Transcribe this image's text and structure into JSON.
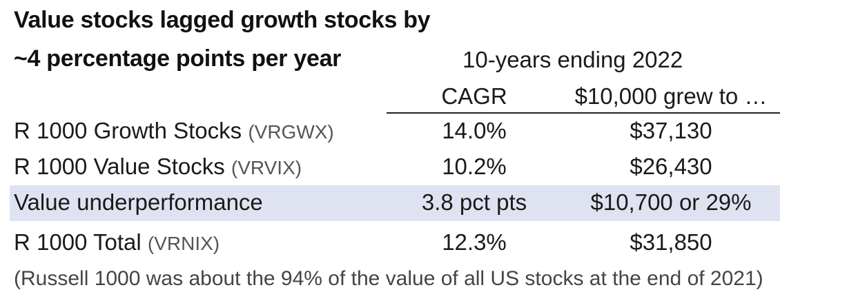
{
  "chart_data": {
    "type": "table",
    "title_lines": [
      "Value stocks lagged growth stocks by",
      "~4 percentage points per year"
    ],
    "subtitle": "10-years ending 2022",
    "columns": [
      "CAGR",
      "$10,000 grew to …"
    ],
    "rows": [
      {
        "label": "R 1000 Growth Stocks",
        "fund": "(VRGWX)",
        "cagr": "14.0%",
        "grew_to": "$37,130",
        "highlight": false
      },
      {
        "label": "R 1000 Value Stocks",
        "fund": "(VRVIX)",
        "cagr": "10.2%",
        "grew_to": "$26,430",
        "highlight": false
      },
      {
        "label": "Value underperformance",
        "fund": "",
        "cagr": "3.8 pct pts",
        "grew_to": "$10,700 or 29%",
        "highlight": true
      },
      {
        "label": "R 1000 Total",
        "fund": "(VRNIX)",
        "cagr": "12.3%",
        "grew_to": "$31,850",
        "highlight": false
      }
    ],
    "footnote": "(Russell 1000 was about the 94% of the value of all US stocks at the end of 2021)"
  },
  "colors": {
    "highlight_row": "#dfe3f1",
    "text": "#1a1a1a",
    "fund_code": "#555555"
  }
}
